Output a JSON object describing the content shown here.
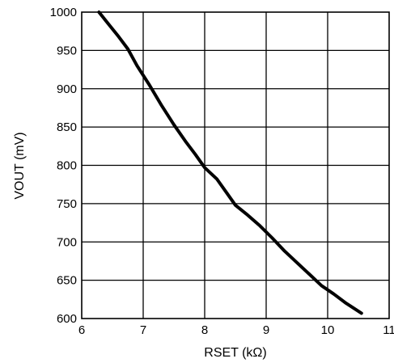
{
  "chart_data": {
    "type": "line",
    "xlabel": "RSET (kΩ)",
    "ylabel": "VOUT (mV)",
    "xlim": [
      6,
      11
    ],
    "ylim": [
      600,
      1000
    ],
    "x_ticks": [
      6,
      7,
      8,
      9,
      10,
      11
    ],
    "y_ticks": [
      600,
      650,
      700,
      750,
      800,
      850,
      900,
      950,
      1000
    ],
    "x_tick_labels": [
      "6",
      "7",
      "8",
      "9",
      "10",
      "11"
    ],
    "y_tick_labels": [
      "600",
      "650",
      "700",
      "750",
      "800",
      "850",
      "900",
      "950",
      "1000"
    ],
    "grid": true,
    "series": [
      {
        "color": "#000000",
        "x": [
          6.28,
          6.45,
          6.6,
          6.75,
          6.9,
          7.1,
          7.3,
          7.5,
          7.7,
          7.85,
          8.0,
          8.2,
          8.35,
          8.5,
          8.7,
          8.9,
          9.1,
          9.3,
          9.5,
          9.7,
          9.9,
          10.1,
          10.3,
          10.55
        ],
        "y": [
          1000,
          983,
          968,
          952,
          930,
          905,
          878,
          853,
          830,
          814,
          797,
          782,
          765,
          748,
          735,
          721,
          705,
          688,
          673,
          658,
          643,
          632,
          620,
          607
        ]
      }
    ]
  }
}
